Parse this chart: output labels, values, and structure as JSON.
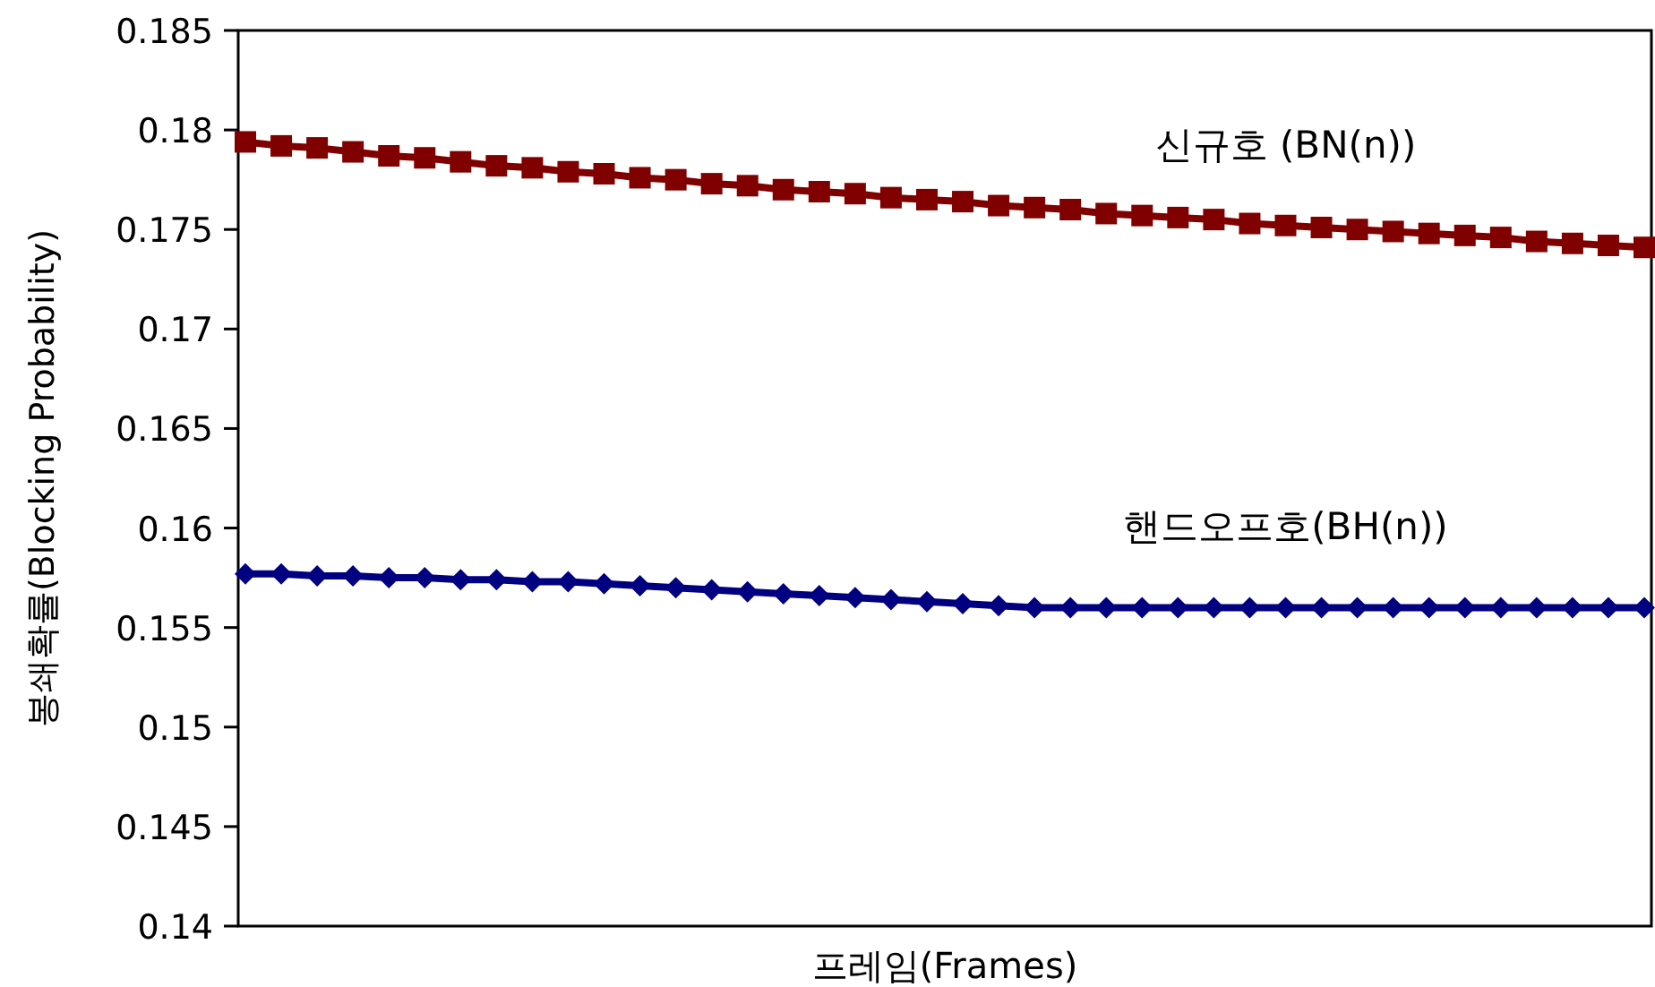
{
  "chart_data": {
    "type": "line",
    "xlabel": "프레임(Frames)",
    "ylabel": "봉쇄확률(Blocking Probability)",
    "categories": [
      null,
      null,
      null,
      null,
      null,
      null,
      null,
      null,
      null,
      null,
      null,
      null,
      null,
      null,
      null,
      null,
      null,
      null,
      null,
      null,
      null,
      null,
      null,
      null,
      null,
      null,
      null,
      null,
      null,
      null,
      null,
      null,
      null,
      null,
      null,
      null,
      null,
      null,
      null,
      null
    ],
    "series": [
      {
        "name": "신규호 (BN(n))",
        "color": "#800000",
        "marker": "square",
        "values": [
          0.1794,
          0.1792,
          0.1791,
          0.1789,
          0.1787,
          0.1786,
          0.1784,
          0.1782,
          0.1781,
          0.1779,
          0.1778,
          0.1776,
          0.1775,
          0.1773,
          0.1772,
          0.177,
          0.1769,
          0.1768,
          0.1766,
          0.1765,
          0.1764,
          0.1762,
          0.1761,
          0.176,
          0.1758,
          0.1757,
          0.1756,
          0.1755,
          0.1753,
          0.1752,
          0.1751,
          0.175,
          0.1749,
          0.1748,
          0.1747,
          0.1746,
          0.1744,
          0.1743,
          0.1742,
          0.1741
        ]
      },
      {
        "name": "핸드오프호(BH(n))",
        "color": "#000080",
        "marker": "diamond",
        "values": [
          0.1577,
          0.1577,
          0.1576,
          0.1576,
          0.1575,
          0.1575,
          0.1574,
          0.1574,
          0.1573,
          0.1573,
          0.1572,
          0.1571,
          0.157,
          0.1569,
          0.1568,
          0.1567,
          0.1566,
          0.1565,
          0.1564,
          0.1563,
          0.1562,
          0.1561,
          0.156,
          0.156,
          0.156,
          0.156,
          0.156,
          0.156,
          0.156,
          0.156,
          0.156,
          0.156,
          0.156,
          0.156,
          0.156,
          0.156,
          0.156,
          0.156,
          0.156,
          0.156
        ]
      }
    ],
    "ylim": [
      0.14,
      0.185
    ],
    "yticks": [
      0.14,
      0.145,
      0.15,
      0.155,
      0.16,
      0.165,
      0.17,
      0.175,
      0.18,
      0.185
    ],
    "grid": false
  }
}
